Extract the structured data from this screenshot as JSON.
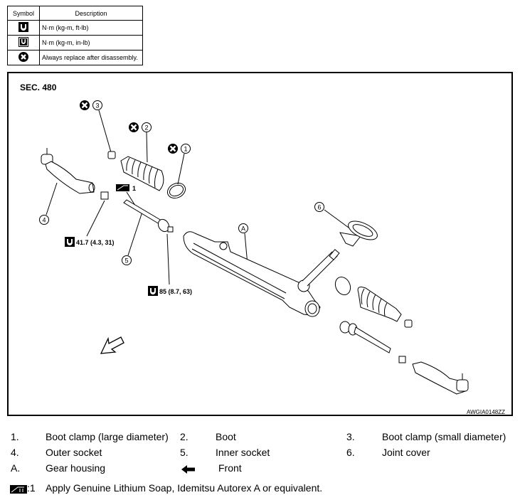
{
  "legend_table": {
    "headers": [
      "Symbol",
      "Description"
    ],
    "rows": [
      {
        "icon": "torque-wrench-ftlb-icon",
        "description": "N·m (kg-m, ft-lb)"
      },
      {
        "icon": "torque-wrench-inlb-icon",
        "description": "N·m (kg-m, in-lb)"
      },
      {
        "icon": "always-replace-icon",
        "description": "Always replace after disassembly."
      }
    ]
  },
  "diagram": {
    "section": "SEC. 480",
    "callouts": [
      "1",
      "2",
      "3",
      "4",
      "5",
      "6",
      "A"
    ],
    "torque_1": "41.7 (4.3, 31)",
    "torque_2": "85 (8.7, 63)",
    "grease_ref": "1",
    "figure_code": "AWGIA0148ZZ"
  },
  "parts": [
    {
      "num": "1.",
      "name": "Boot clamp (large diameter)"
    },
    {
      "num": "2.",
      "name": "Boot"
    },
    {
      "num": "3.",
      "name": "Boot clamp (small diameter)"
    },
    {
      "num": "4.",
      "name": "Outer socket"
    },
    {
      "num": "5.",
      "name": "Inner socket"
    },
    {
      "num": "6.",
      "name": "Joint cover"
    },
    {
      "num": "A.",
      "name": "Gear housing"
    }
  ],
  "front_label": "Front",
  "grease_note": {
    "ref": ":1",
    "text": "Apply Genuine Lithium Soap, Idemitsu Autorex A or equivalent."
  }
}
